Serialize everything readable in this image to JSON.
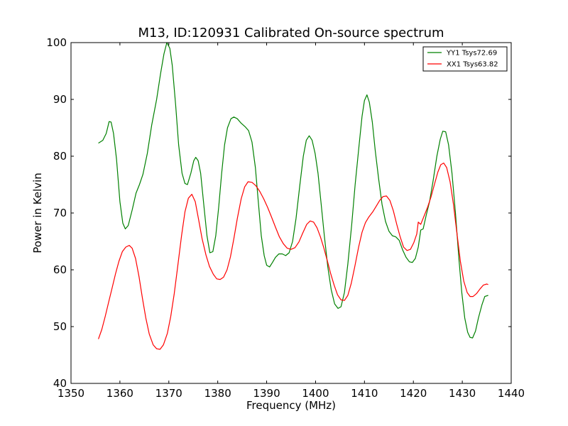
{
  "chart_data": {
    "type": "line",
    "title": "M13, ID:120931 Calibrated On-source spectrum",
    "xlabel": "Frequency (MHz)",
    "ylabel": "Power in Kelvin",
    "xlim": [
      1350,
      1440
    ],
    "ylim": [
      40,
      100
    ],
    "xticks": [
      "1350",
      "1360",
      "1370",
      "1380",
      "1390",
      "1400",
      "1410",
      "1420",
      "1430",
      "1440"
    ],
    "yticks": [
      "40",
      "50",
      "60",
      "70",
      "80",
      "90",
      "100"
    ],
    "grid": false,
    "legend_position": "top-right",
    "series": [
      {
        "name": "YY1 Tsys72.69",
        "color": "#008000",
        "points": [
          [
            1355.6,
            82.3
          ],
          [
            1356.5,
            82.8
          ],
          [
            1357.2,
            84.0
          ],
          [
            1357.8,
            86.1
          ],
          [
            1358.2,
            86.0
          ],
          [
            1358.7,
            84.0
          ],
          [
            1359.3,
            79.5
          ],
          [
            1360.0,
            72.0
          ],
          [
            1360.6,
            68.2
          ],
          [
            1361.1,
            67.2
          ],
          [
            1361.7,
            67.8
          ],
          [
            1362.5,
            70.5
          ],
          [
            1363.3,
            73.5
          ],
          [
            1364.0,
            75.0
          ],
          [
            1364.7,
            76.8
          ],
          [
            1365.6,
            80.5
          ],
          [
            1366.5,
            85.5
          ],
          [
            1367.5,
            90.0
          ],
          [
            1368.3,
            94.5
          ],
          [
            1369.0,
            98.0
          ],
          [
            1369.6,
            100.0
          ],
          [
            1370.2,
            99.0
          ],
          [
            1370.7,
            96.0
          ],
          [
            1371.4,
            89.0
          ],
          [
            1372.0,
            82.0
          ],
          [
            1372.7,
            77.0
          ],
          [
            1373.3,
            75.2
          ],
          [
            1373.8,
            75.0
          ],
          [
            1374.5,
            77.0
          ],
          [
            1375.1,
            79.2
          ],
          [
            1375.5,
            79.8
          ],
          [
            1376.0,
            79.2
          ],
          [
            1376.5,
            77.0
          ],
          [
            1377.2,
            71.0
          ],
          [
            1377.8,
            66.0
          ],
          [
            1378.4,
            63.0
          ],
          [
            1379.0,
            63.2
          ],
          [
            1379.6,
            66.0
          ],
          [
            1380.2,
            71.0
          ],
          [
            1380.8,
            77.0
          ],
          [
            1381.4,
            82.0
          ],
          [
            1382.0,
            85.0
          ],
          [
            1382.7,
            86.6
          ],
          [
            1383.3,
            86.9
          ],
          [
            1384.0,
            86.6
          ],
          [
            1384.8,
            85.8
          ],
          [
            1385.6,
            85.2
          ],
          [
            1386.3,
            84.5
          ],
          [
            1387.0,
            82.5
          ],
          [
            1387.7,
            78.0
          ],
          [
            1388.3,
            72.0
          ],
          [
            1388.9,
            66.0
          ],
          [
            1389.5,
            62.5
          ],
          [
            1390.0,
            60.8
          ],
          [
            1390.6,
            60.5
          ],
          [
            1391.2,
            61.3
          ],
          [
            1391.8,
            62.2
          ],
          [
            1392.5,
            62.8
          ],
          [
            1393.2,
            62.8
          ],
          [
            1393.9,
            62.5
          ],
          [
            1394.6,
            63.0
          ],
          [
            1395.3,
            65.0
          ],
          [
            1396.0,
            69.0
          ],
          [
            1396.8,
            75.0
          ],
          [
            1397.5,
            80.0
          ],
          [
            1398.1,
            82.8
          ],
          [
            1398.7,
            83.6
          ],
          [
            1399.3,
            82.8
          ],
          [
            1399.9,
            80.5
          ],
          [
            1400.5,
            77.0
          ],
          [
            1401.1,
            72.0
          ],
          [
            1401.8,
            66.0
          ],
          [
            1402.5,
            60.5
          ],
          [
            1403.2,
            56.5
          ],
          [
            1403.9,
            54.0
          ],
          [
            1404.6,
            53.2
          ],
          [
            1405.2,
            53.5
          ],
          [
            1405.9,
            56.0
          ],
          [
            1406.6,
            61.0
          ],
          [
            1407.4,
            68.0
          ],
          [
            1408.1,
            75.0
          ],
          [
            1408.9,
            82.0
          ],
          [
            1409.5,
            87.0
          ],
          [
            1410.0,
            89.8
          ],
          [
            1410.5,
            90.8
          ],
          [
            1411.0,
            89.5
          ],
          [
            1411.6,
            86.0
          ],
          [
            1412.2,
            81.0
          ],
          [
            1412.9,
            76.0
          ],
          [
            1413.6,
            71.5
          ],
          [
            1414.3,
            68.5
          ],
          [
            1415.0,
            66.8
          ],
          [
            1415.7,
            66.0
          ],
          [
            1416.4,
            65.8
          ],
          [
            1417.1,
            65.2
          ],
          [
            1417.8,
            63.5
          ],
          [
            1418.5,
            62.2
          ],
          [
            1419.2,
            61.4
          ],
          [
            1419.8,
            61.3
          ],
          [
            1420.4,
            62.0
          ],
          [
            1421.0,
            64.0
          ],
          [
            1421.5,
            67.0
          ],
          [
            1422.0,
            67.2
          ],
          [
            1422.6,
            69.5
          ],
          [
            1423.3,
            72.0
          ],
          [
            1424.0,
            75.5
          ],
          [
            1424.8,
            80.0
          ],
          [
            1425.5,
            83.0
          ],
          [
            1426.0,
            84.4
          ],
          [
            1426.6,
            84.3
          ],
          [
            1427.2,
            82.0
          ],
          [
            1427.9,
            77.0
          ],
          [
            1428.6,
            70.0
          ],
          [
            1429.3,
            62.0
          ],
          [
            1429.9,
            56.0
          ],
          [
            1430.5,
            51.5
          ],
          [
            1431.1,
            49.0
          ],
          [
            1431.6,
            48.1
          ],
          [
            1432.1,
            48.0
          ],
          [
            1432.7,
            49.2
          ],
          [
            1433.3,
            51.5
          ],
          [
            1434.0,
            53.8
          ],
          [
            1434.6,
            55.3
          ],
          [
            1435.3,
            55.5
          ]
        ]
      },
      {
        "name": "XX1 Tsys63.82",
        "color": "#ff0000",
        "points": [
          [
            1355.6,
            47.8
          ],
          [
            1356.3,
            49.5
          ],
          [
            1357.0,
            51.8
          ],
          [
            1357.7,
            54.3
          ],
          [
            1358.4,
            56.8
          ],
          [
            1359.1,
            59.3
          ],
          [
            1359.8,
            61.5
          ],
          [
            1360.5,
            63.2
          ],
          [
            1361.2,
            64.0
          ],
          [
            1361.9,
            64.3
          ],
          [
            1362.5,
            63.8
          ],
          [
            1363.2,
            62.0
          ],
          [
            1363.9,
            58.8
          ],
          [
            1364.6,
            55.0
          ],
          [
            1365.3,
            51.5
          ],
          [
            1366.0,
            48.7
          ],
          [
            1366.8,
            46.8
          ],
          [
            1367.5,
            46.1
          ],
          [
            1368.2,
            46.0
          ],
          [
            1368.9,
            46.8
          ],
          [
            1369.7,
            48.8
          ],
          [
            1370.4,
            51.8
          ],
          [
            1371.1,
            55.8
          ],
          [
            1371.8,
            60.5
          ],
          [
            1372.6,
            66.0
          ],
          [
            1373.3,
            70.2
          ],
          [
            1374.0,
            72.6
          ],
          [
            1374.7,
            73.3
          ],
          [
            1375.4,
            72.0
          ],
          [
            1376.1,
            68.8
          ],
          [
            1376.8,
            65.5
          ],
          [
            1377.6,
            62.6
          ],
          [
            1378.3,
            60.6
          ],
          [
            1379.1,
            59.2
          ],
          [
            1379.8,
            58.4
          ],
          [
            1380.5,
            58.3
          ],
          [
            1381.2,
            58.7
          ],
          [
            1381.9,
            60.0
          ],
          [
            1382.6,
            62.3
          ],
          [
            1383.3,
            65.5
          ],
          [
            1384.0,
            69.0
          ],
          [
            1384.8,
            72.5
          ],
          [
            1385.5,
            74.6
          ],
          [
            1386.2,
            75.5
          ],
          [
            1387.0,
            75.4
          ],
          [
            1387.8,
            74.8
          ],
          [
            1388.6,
            73.8
          ],
          [
            1389.4,
            72.5
          ],
          [
            1390.2,
            71.0
          ],
          [
            1391.0,
            69.3
          ],
          [
            1391.8,
            67.5
          ],
          [
            1392.6,
            65.8
          ],
          [
            1393.4,
            64.6
          ],
          [
            1394.2,
            63.8
          ],
          [
            1395.0,
            63.6
          ],
          [
            1395.8,
            63.9
          ],
          [
            1396.6,
            64.9
          ],
          [
            1397.4,
            66.5
          ],
          [
            1398.2,
            68.0
          ],
          [
            1398.9,
            68.6
          ],
          [
            1399.6,
            68.4
          ],
          [
            1400.3,
            67.4
          ],
          [
            1401.0,
            65.8
          ],
          [
            1401.7,
            63.8
          ],
          [
            1402.4,
            61.6
          ],
          [
            1403.1,
            59.3
          ],
          [
            1403.8,
            57.3
          ],
          [
            1404.5,
            55.6
          ],
          [
            1405.2,
            54.7
          ],
          [
            1405.9,
            54.6
          ],
          [
            1406.6,
            55.5
          ],
          [
            1407.3,
            57.6
          ],
          [
            1408.0,
            60.5
          ],
          [
            1408.8,
            64.0
          ],
          [
            1409.5,
            66.6
          ],
          [
            1410.2,
            68.3
          ],
          [
            1410.9,
            69.3
          ],
          [
            1411.7,
            70.2
          ],
          [
            1412.4,
            71.2
          ],
          [
            1413.1,
            72.2
          ],
          [
            1413.8,
            72.9
          ],
          [
            1414.5,
            73.0
          ],
          [
            1415.2,
            72.2
          ],
          [
            1415.9,
            70.4
          ],
          [
            1416.6,
            68.0
          ],
          [
            1417.3,
            65.8
          ],
          [
            1418.0,
            64.0
          ],
          [
            1418.7,
            63.4
          ],
          [
            1419.4,
            63.6
          ],
          [
            1420.1,
            64.8
          ],
          [
            1420.7,
            66.3
          ],
          [
            1421.0,
            68.4
          ],
          [
            1421.5,
            68.0
          ],
          [
            1422.2,
            69.5
          ],
          [
            1422.9,
            71.0
          ],
          [
            1423.6,
            72.8
          ],
          [
            1424.3,
            75.0
          ],
          [
            1425.0,
            77.2
          ],
          [
            1425.6,
            78.5
          ],
          [
            1426.2,
            78.8
          ],
          [
            1426.8,
            78.0
          ],
          [
            1427.5,
            75.5
          ],
          [
            1428.2,
            71.5
          ],
          [
            1428.9,
            66.5
          ],
          [
            1429.6,
            61.5
          ],
          [
            1430.3,
            58.0
          ],
          [
            1431.0,
            56.0
          ],
          [
            1431.6,
            55.3
          ],
          [
            1432.2,
            55.3
          ],
          [
            1432.9,
            55.8
          ],
          [
            1433.6,
            56.6
          ],
          [
            1434.3,
            57.3
          ],
          [
            1435.0,
            57.5
          ],
          [
            1435.3,
            57.4
          ]
        ]
      }
    ]
  }
}
